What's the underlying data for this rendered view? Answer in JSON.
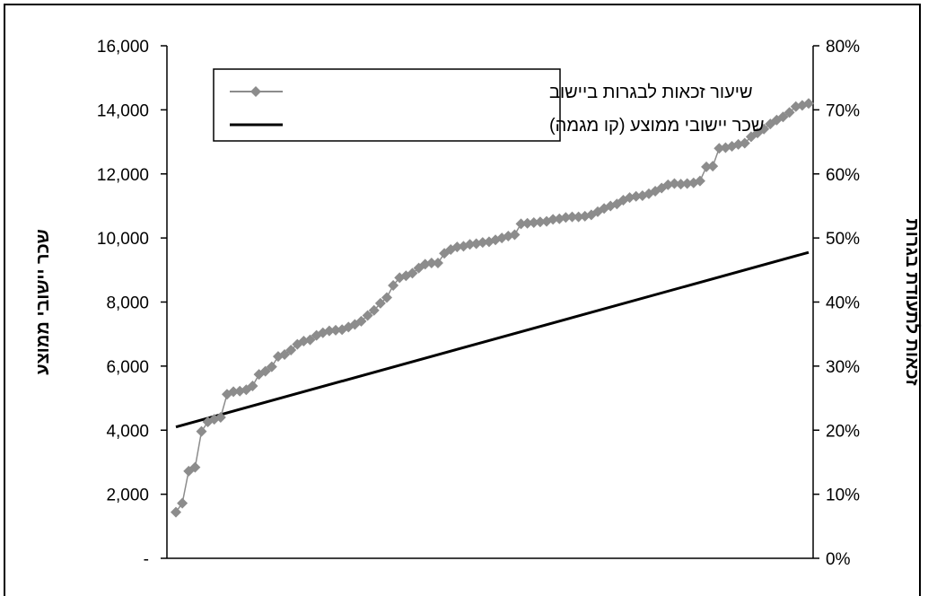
{
  "chart_data": {
    "type": "line",
    "title": "",
    "x_axis": {
      "labels_shown": false
    },
    "y_left": {
      "label": "שכר יישובי ממוצע",
      "range": [
        0,
        16000
      ],
      "ticks": [
        "-",
        "2,000",
        "4,000",
        "6,000",
        "8,000",
        "10,000",
        "12,000",
        "14,000",
        "16,000"
      ]
    },
    "y_right": {
      "label": "זכאות לתעודת בגרות",
      "range": [
        0,
        80
      ],
      "unit": "%",
      "ticks": [
        "0%",
        "10%",
        "20%",
        "30%",
        "40%",
        "50%",
        "60%",
        "70%",
        "80%"
      ]
    },
    "legend": {
      "position": "top-left",
      "entries": [
        {
          "label": "שיעור זכאות לבגרות ביישוב",
          "marker": "diamond",
          "color": "#8c8c8c"
        },
        {
          "label": "שכר יישובי ממוצע (קו מגמה)",
          "marker": "none",
          "color": "#000000"
        }
      ]
    },
    "series": [
      {
        "name": "שיעור זכאות לבגרות ביישוב",
        "axis": "right",
        "color": "#8c8c8c",
        "values": [
          7.2,
          8.6,
          13.6,
          14.2,
          19.8,
          21.3,
          21.7,
          22.0,
          25.6,
          26.0,
          26.1,
          26.3,
          26.9,
          28.7,
          29.2,
          29.9,
          31.5,
          31.8,
          32.5,
          33.4,
          33.9,
          34.1,
          34.8,
          35.2,
          35.5,
          35.6,
          35.7,
          36.1,
          36.5,
          37.0,
          37.9,
          38.7,
          39.8,
          40.7,
          42.6,
          43.8,
          44.1,
          44.5,
          45.3,
          45.9,
          46.1,
          46.1,
          47.6,
          48.2,
          48.6,
          48.7,
          49.0,
          49.1,
          49.3,
          49.4,
          49.7,
          50.0,
          50.3,
          50.5,
          52.2,
          52.3,
          52.4,
          52.5,
          52.6,
          52.9,
          53.0,
          53.2,
          53.3,
          53.3,
          53.4,
          53.6,
          54.1,
          54.6,
          55.0,
          55.3,
          55.9,
          56.3,
          56.5,
          56.6,
          56.9,
          57.3,
          57.8,
          58.3,
          58.5,
          58.4,
          58.5,
          58.6,
          58.9,
          61.1,
          61.2,
          64.0,
          64.1,
          64.3,
          64.6,
          64.8,
          65.8,
          66.4,
          67.0,
          67.8,
          68.4,
          68.9,
          69.6,
          70.5,
          70.7,
          71.0
        ]
      },
      {
        "name": "שכר יישובי ממוצע (קו מגמה)",
        "axis": "left",
        "color": "#000000",
        "trendline": true,
        "start": 4100,
        "end": 9550
      }
    ],
    "grid": false
  }
}
